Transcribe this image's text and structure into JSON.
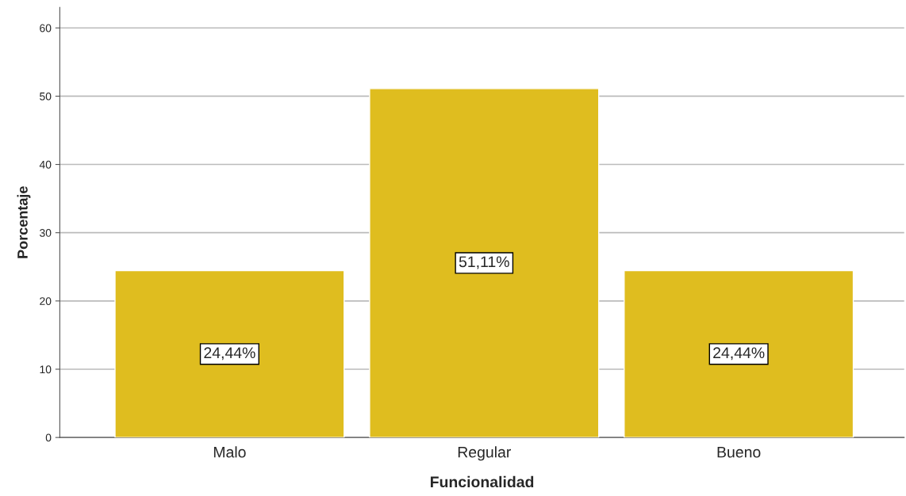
{
  "chart_data": {
    "type": "bar",
    "xlabel": "Funcionalidad",
    "ylabel": "Porcentaje",
    "categories": [
      "Malo",
      "Regular",
      "Bueno"
    ],
    "values": [
      24.44,
      51.11,
      24.44
    ],
    "value_labels": [
      "24,44%",
      "51,11%",
      "24,44%"
    ],
    "color": "#dfbd1f",
    "ylim": [
      0,
      63
    ],
    "yticks": [
      0,
      10,
      20,
      30,
      40,
      50,
      60
    ],
    "grid": "y",
    "legend": false
  }
}
